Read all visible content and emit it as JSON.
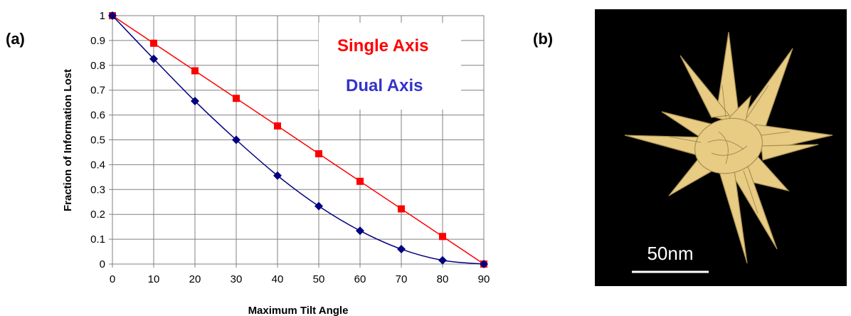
{
  "panels": {
    "a_label": "(a)",
    "b_label": "(b)"
  },
  "scale_bar": {
    "label": "50nm"
  },
  "colors": {
    "single_axis": "#ff0000",
    "dual_axis": "#000080",
    "dual_axis_label": "#3333cc",
    "particle": "#e8cc84",
    "image_background": "#000000"
  },
  "chart_data": {
    "type": "line",
    "title": "",
    "xlabel": "Maximum Tilt Angle",
    "ylabel": "Fraction of Information Lost",
    "xlim": [
      0,
      90
    ],
    "ylim": [
      0,
      1
    ],
    "x_ticks": [
      "0",
      "10",
      "20",
      "30",
      "40",
      "50",
      "60",
      "70",
      "80",
      "90"
    ],
    "y_ticks": [
      "0",
      "0.1",
      "0.2",
      "0.3",
      "0.4",
      "0.5",
      "0.6",
      "0.7",
      "0.8",
      "0.9",
      "1"
    ],
    "grid": true,
    "legend_position": "top-right",
    "x": [
      0,
      10,
      20,
      30,
      40,
      50,
      60,
      70,
      80,
      90
    ],
    "series": [
      {
        "name": "Single Axis",
        "marker": "square",
        "color": "#ff0000",
        "values": [
          1.0,
          0.889,
          0.778,
          0.667,
          0.556,
          0.444,
          0.333,
          0.222,
          0.111,
          0.0
        ]
      },
      {
        "name": "Dual Axis",
        "marker": "diamond",
        "color": "#000080",
        "values": [
          1.0,
          0.826,
          0.656,
          0.5,
          0.356,
          0.233,
          0.134,
          0.06,
          0.015,
          0.0
        ]
      }
    ]
  }
}
